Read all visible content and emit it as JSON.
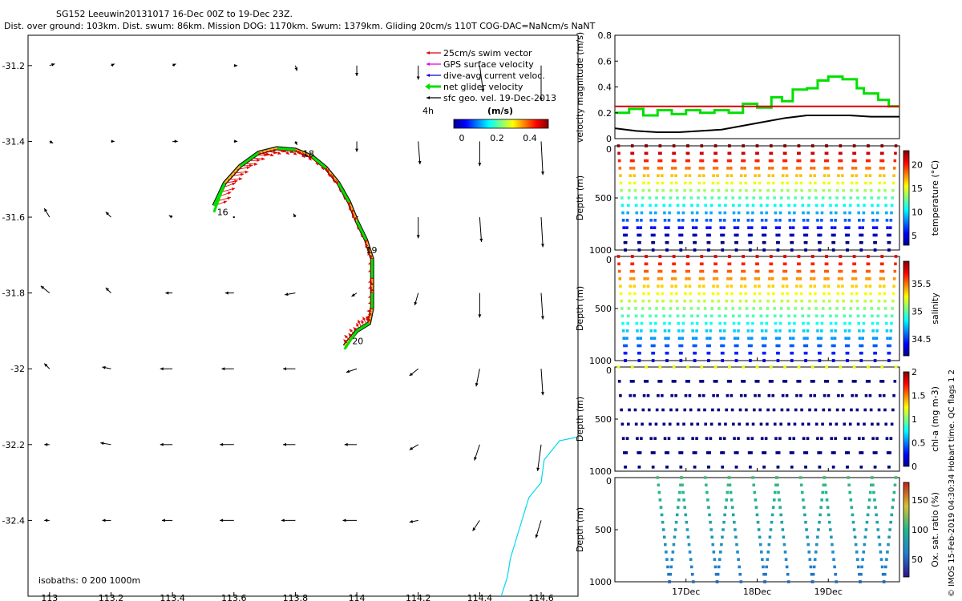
{
  "header": {
    "line1": "SG152 Leeuwin20131017 16-Dec 00Z to 19-Dec 23Z.",
    "line2": "Dist. over ground: 103km. Dist. swum: 86km. Mission DOG: 1170km. Swum: 1379km. Gliding 20cm/s 110T COG-DAC=NaNcm/s NaNT"
  },
  "credit": "© IMOS 15-Feb-2019 04:30:34 Hobart time. QC flags 1  2",
  "colors": {
    "glider": "#00e000",
    "swim": "#e00000",
    "gps": "#e000e0",
    "dac": "#0000e0",
    "geo": "#000000",
    "coast": "#00d8f0",
    "track_fill": "#f0c020"
  },
  "chart_data": [
    {
      "type": "quiver-map",
      "xlim": [
        112.93,
        114.72
      ],
      "ylim": [
        -32.6,
        -31.12
      ],
      "xticks": [
        "113",
        "113.2",
        "113.4",
        "113.6",
        "113.8",
        "114",
        "114.2",
        "114.4",
        "114.6"
      ],
      "yticks": [
        "-31.2",
        "-31.4",
        "-31.6",
        "-31.8",
        "-32",
        "-32.2",
        "-32.4"
      ],
      "legend": {
        "entries": [
          "25cm/s swim vector",
          "GPS surface velocity",
          "dive-avg current veloc.",
          "net glider velocity",
          "sfc geo. vel. 19-Dec-2013"
        ],
        "time_label": "4h",
        "cbar_unit": "(m/s)",
        "cbar_ticks": [
          "0",
          "0.2",
          "0.4"
        ]
      },
      "isobaths_label": "isobaths: 0   200   1000m",
      "track_day_labels": [
        {
          "text": "16",
          "lon": 113.545,
          "lat": -31.595
        },
        {
          "text": "18",
          "lon": 113.825,
          "lat": -31.44
        },
        {
          "text": "19",
          "lon": 114.03,
          "lat": -31.695
        },
        {
          "text": "20",
          "lon": 113.985,
          "lat": -31.935
        }
      ],
      "track": [
        [
          113.535,
          -31.57
        ],
        [
          113.57,
          -31.51
        ],
        [
          113.62,
          -31.465
        ],
        [
          113.68,
          -31.43
        ],
        [
          113.74,
          -31.418
        ],
        [
          113.8,
          -31.422
        ],
        [
          113.855,
          -31.44
        ],
        [
          113.9,
          -31.47
        ],
        [
          113.94,
          -31.51
        ],
        [
          113.975,
          -31.56
        ],
        [
          114.0,
          -31.61
        ],
        [
          114.03,
          -31.66
        ],
        [
          114.05,
          -31.71
        ],
        [
          114.05,
          -31.76
        ],
        [
          114.05,
          -31.8
        ],
        [
          114.05,
          -31.84
        ],
        [
          114.04,
          -31.88
        ],
        [
          114.0,
          -31.9
        ],
        [
          113.96,
          -31.94
        ]
      ],
      "geo_vectors": {
        "lons": [
          113,
          113.2,
          113.4,
          113.6,
          113.8,
          114,
          114.2,
          114.4,
          114.6
        ],
        "lats": [
          -31.2,
          -31.4,
          -31.6,
          -31.8,
          -32,
          -32.2,
          -32.4
        ],
        "u": [
          [
            0.03,
            0.02,
            0.02,
            0.02,
            0.01,
            0.0,
            0.0,
            0.02,
            0.0
          ],
          [
            0.02,
            0.02,
            0.03,
            0.02,
            0.01,
            0.0,
            0.01,
            0.0,
            0.01
          ],
          [
            -0.03,
            -0.03,
            -0.02,
            0.0,
            -0.01,
            -0.01,
            0.0,
            0.01,
            0.01
          ],
          [
            -0.05,
            -0.03,
            -0.04,
            -0.05,
            -0.06,
            -0.03,
            -0.02,
            0.0,
            0.01
          ],
          [
            -0.03,
            -0.05,
            -0.07,
            -0.07,
            -0.07,
            -0.06,
            -0.05,
            -0.02,
            0.01
          ],
          [
            -0.03,
            -0.06,
            -0.07,
            -0.08,
            -0.07,
            -0.07,
            -0.05,
            -0.03,
            -0.02
          ],
          [
            -0.03,
            -0.05,
            -0.06,
            -0.08,
            -0.08,
            -0.08,
            -0.05,
            -0.04,
            -0.03
          ]
        ],
        "v": [
          [
            0.01,
            0.01,
            0.01,
            0.0,
            -0.03,
            -0.06,
            -0.08,
            -0.15,
            -0.2
          ],
          [
            -0.01,
            0.0,
            0.0,
            0.0,
            -0.02,
            -0.06,
            -0.13,
            -0.14,
            -0.19
          ],
          [
            0.05,
            0.03,
            0.01,
            0.0,
            0.02,
            0.01,
            -0.12,
            -0.14,
            -0.17
          ],
          [
            0.04,
            0.03,
            0.0,
            0.0,
            -0.01,
            -0.02,
            -0.07,
            -0.14,
            -0.15
          ],
          [
            0.03,
            0.01,
            0.0,
            0.0,
            0.0,
            -0.02,
            -0.04,
            -0.1,
            -0.15
          ],
          [
            0.0,
            0.01,
            0.0,
            0.0,
            0.0,
            0.0,
            -0.03,
            -0.09,
            -0.15
          ],
          [
            0.0,
            0.0,
            0.0,
            0.0,
            0.0,
            0.0,
            -0.01,
            -0.06,
            -0.1
          ]
        ]
      }
    },
    {
      "type": "line",
      "ylabel": "velocity magnitude (m/s)",
      "ylim": [
        0,
        0.8
      ],
      "yticks": [
        "0",
        "0.2",
        "0.4",
        "0.6",
        "0.8"
      ],
      "xlim": [
        16.0,
        20.0
      ],
      "series": [
        {
          "color": "#00e000",
          "x": [
            16.0,
            16.2,
            16.4,
            16.6,
            16.8,
            17.0,
            17.2,
            17.4,
            17.6,
            17.8,
            18.0,
            18.2,
            18.35,
            18.5,
            18.7,
            18.85,
            19.0,
            19.2,
            19.4,
            19.5,
            19.7,
            19.85,
            20.0
          ],
          "y": [
            0.2,
            0.23,
            0.18,
            0.22,
            0.19,
            0.22,
            0.2,
            0.22,
            0.2,
            0.27,
            0.24,
            0.32,
            0.29,
            0.38,
            0.39,
            0.45,
            0.48,
            0.46,
            0.39,
            0.35,
            0.3,
            0.25,
            0.25
          ]
        },
        {
          "color": "#e00000",
          "x": [
            16.0,
            20.0
          ],
          "y": [
            0.25,
            0.25
          ]
        },
        {
          "color": "#000000",
          "x": [
            16.0,
            16.3,
            16.6,
            16.9,
            17.2,
            17.5,
            17.8,
            18.1,
            18.4,
            18.7,
            19.0,
            19.3,
            19.6,
            20.0
          ],
          "y": [
            0.08,
            0.06,
            0.05,
            0.05,
            0.06,
            0.07,
            0.1,
            0.13,
            0.16,
            0.18,
            0.18,
            0.18,
            0.17,
            0.17
          ]
        }
      ]
    },
    {
      "type": "heatmap-sections",
      "x_ticks": [
        "17Dec",
        "18Dec",
        "19Dec"
      ],
      "x_tick_values": [
        17.0,
        18.0,
        19.0
      ],
      "xlim": [
        16.0,
        20.0
      ],
      "depth_ylabel": "Depth (m)",
      "depth_ylim": [
        0,
        1000
      ],
      "depth_ticks": [
        "0",
        "500",
        "1000"
      ],
      "panels": [
        {
          "name": "temperature",
          "cbar_label": "temperature (°C)",
          "clim": [
            3,
            23
          ],
          "cbar_ticks": [
            "5",
            "10",
            "15",
            "20"
          ],
          "dives": 20,
          "max_depth": 1000
        },
        {
          "name": "salinity",
          "cbar_label": "salinity",
          "clim": [
            34.2,
            35.9
          ],
          "cbar_ticks": [
            "34.5",
            "35",
            "35.5"
          ],
          "dives": 20,
          "max_depth": 1000
        },
        {
          "name": "chl-a",
          "cbar_label": "chl-a (mg m-3)",
          "clim": [
            0,
            2
          ],
          "cbar_ticks": [
            "0",
            "0.5",
            "1",
            "1.5",
            "2"
          ],
          "dives": 20,
          "max_depth": 960
        },
        {
          "name": "oxygen",
          "cbar_label": "Ox. sat. ratio (%)",
          "clim": [
            20,
            180
          ],
          "cbar_ticks": [
            "50",
            "100",
            "150"
          ],
          "dives": 10,
          "max_depth": 1000
        }
      ]
    }
  ]
}
